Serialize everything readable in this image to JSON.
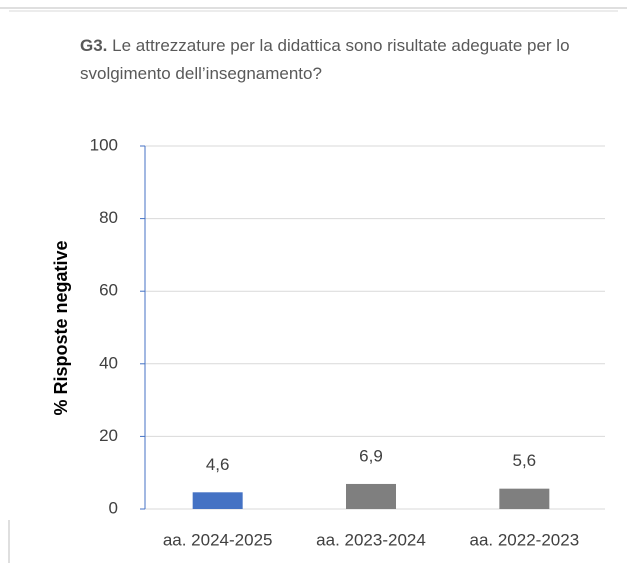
{
  "chart_data": {
    "type": "bar",
    "title_bold": "G3.",
    "title": "Le attrezzature per la didattica sono risultate adeguate per lo svolgimento dell’insegnamento?",
    "ylabel": "% Risposte negative",
    "categories": [
      "aa. 2024-2025",
      "aa. 2023-2024",
      "aa. 2022-2023"
    ],
    "values": [
      4.6,
      6.9,
      5.6
    ],
    "value_labels": [
      "4,6",
      "6,9",
      "5,6"
    ],
    "colors": [
      "#4472c4",
      "#7f7f7f",
      "#7f7f7f"
    ],
    "ylim": [
      0,
      100
    ],
    "yticks": [
      0,
      20,
      40,
      60,
      80,
      100
    ],
    "grid": true
  }
}
